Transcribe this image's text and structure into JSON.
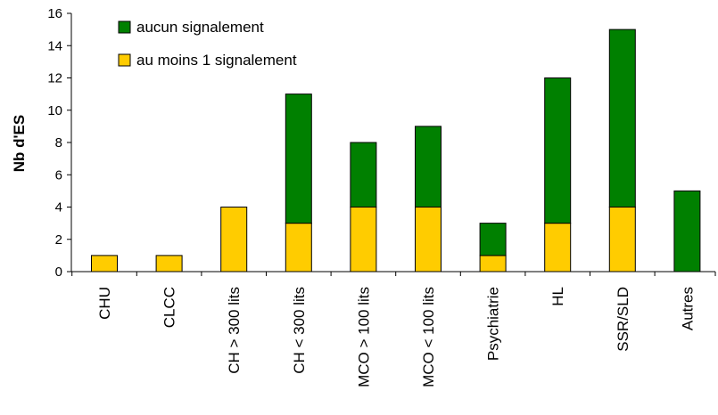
{
  "chart_data": {
    "type": "bar",
    "stacked": true,
    "categories": [
      "CHU",
      "CLCC",
      "CH > 300 lits",
      "CH < 300 lits",
      "MCO > 100 lits",
      "MCO < 100 lits",
      "Psychiatrie",
      "HL",
      "SSR/SLD",
      "Autres"
    ],
    "series": [
      {
        "name": "au moins 1 signalement",
        "color": "#ffcc00",
        "values": [
          1,
          1,
          4,
          3,
          4,
          4,
          1,
          3,
          4,
          0
        ]
      },
      {
        "name": "aucun signalement",
        "color": "#008000",
        "values": [
          0,
          0,
          0,
          8,
          4,
          5,
          2,
          9,
          11,
          5
        ]
      }
    ],
    "title": "",
    "xlabel": "",
    "ylabel": "Nb d'ES",
    "ylim": [
      0,
      16
    ],
    "yticks": [
      0,
      2,
      4,
      6,
      8,
      10,
      12,
      14,
      16
    ],
    "grid": false,
    "legend_position": "top-left"
  }
}
